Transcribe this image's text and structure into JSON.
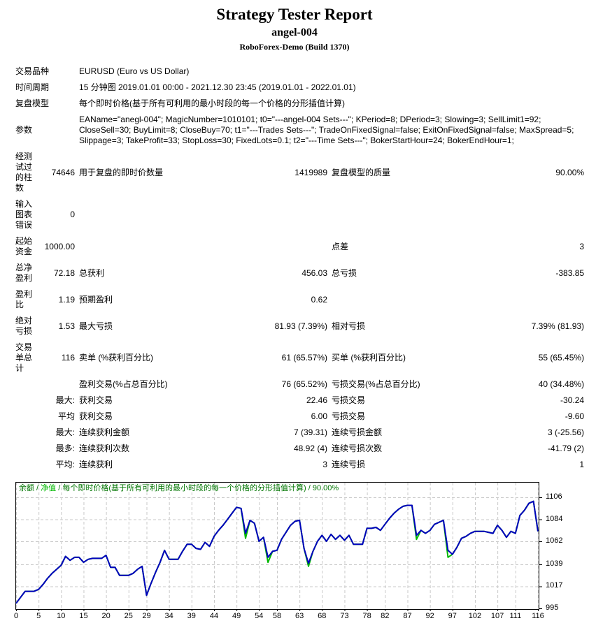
{
  "header": {
    "title": "Strategy Tester Report",
    "ea_name": "angel-004",
    "server": "RoboForex-Demo (Build 1370)"
  },
  "report": {
    "rows": [
      [
        {
          "t": "交易品种",
          "s": 2,
          "c": "h"
        },
        {
          "t": "EURUSD (Euro vs US Dollar)",
          "s": 4
        }
      ],
      [
        {
          "t": "时间周期",
          "s": 2,
          "c": "h"
        },
        {
          "t": "15 分钟图 2019.01.01 00:00 - 2021.12.30 23:45 (2019.01.01 - 2022.01.01)",
          "s": 4
        }
      ],
      [
        {
          "t": "复盘模型",
          "s": 2,
          "c": "h"
        },
        {
          "t": "每个即时价格(基于所有可利用的最小时段的每一个价格的分形插值计算)",
          "s": 4
        }
      ],
      [
        {
          "t": "参数",
          "s": 2,
          "c": "h"
        },
        {
          "t": "EAName=\"anegl-004\"; MagicNumber=1010101; t0=\"---angel-004 Sets---\"; KPeriod=8; DPeriod=3; Slowing=3; SellLimit1=92;\nCloseSell=30; BuyLimit=8; CloseBuy=70; t1=\"---Trades Sets---\"; TradeOnFixedSignal=false; ExitOnFixedSignal=false; MaxSpread=5;\nSlippage=3; TakeProfit=33; StopLoss=30; FixedLots=0.1; t2=\"---Time Sets---\"; BokerStartHour=24; BokerEndHour=1;",
          "s": 4
        }
      ],
      [
        {
          "t": "经测\n试过\n的柱\n数",
          "c": "h"
        },
        {
          "t": "74646",
          "c": "r"
        },
        {
          "t": "用于复盘的即时价数量"
        },
        {
          "t": "1419989",
          "c": "r"
        },
        {
          "t": "复盘模型的质量"
        },
        {
          "t": "90.00%",
          "c": "r"
        }
      ],
      [
        {
          "t": "输入\n图表\n错误",
          "c": "h"
        },
        {
          "t": "0",
          "c": "r"
        },
        {
          "t": ""
        },
        {
          "t": ""
        },
        {
          "t": ""
        },
        {
          "t": ""
        }
      ],
      [
        {
          "t": "起始\n资金",
          "c": "h"
        },
        {
          "t": "1000.00",
          "c": "r"
        },
        {
          "t": ""
        },
        {
          "t": ""
        },
        {
          "t": "点差"
        },
        {
          "t": "3",
          "c": "r"
        }
      ],
      [
        {
          "t": "总净\n盈利",
          "c": "h"
        },
        {
          "t": "72.18",
          "c": "r"
        },
        {
          "t": "总获利"
        },
        {
          "t": "456.03",
          "c": "r"
        },
        {
          "t": "总亏损"
        },
        {
          "t": "-383.85",
          "c": "r"
        }
      ],
      [
        {
          "t": "盈利\n比",
          "c": "h"
        },
        {
          "t": "1.19",
          "c": "r"
        },
        {
          "t": "预期盈利"
        },
        {
          "t": "0.62",
          "c": "r"
        },
        {
          "t": ""
        },
        {
          "t": ""
        }
      ],
      [
        {
          "t": "绝对\n亏损",
          "c": "h"
        },
        {
          "t": "1.53",
          "c": "r"
        },
        {
          "t": "最大亏损"
        },
        {
          "t": "81.93 (7.39%)",
          "c": "r"
        },
        {
          "t": "相对亏损"
        },
        {
          "t": "7.39% (81.93)",
          "c": "r"
        }
      ],
      [
        {
          "t": "交易\n单总\n计",
          "c": "h"
        },
        {
          "t": "116",
          "c": "r"
        },
        {
          "t": "卖单 (%获利百分比)"
        },
        {
          "t": "61 (65.57%)",
          "c": "r"
        },
        {
          "t": "买单 (%获利百分比)"
        },
        {
          "t": "55 (65.45%)",
          "c": "r"
        }
      ],
      [
        {
          "t": "",
          "c": "h"
        },
        {
          "t": "",
          "c": "r"
        },
        {
          "t": "盈利交易(%占总百分比)"
        },
        {
          "t": "76 (65.52%)",
          "c": "r"
        },
        {
          "t": "亏损交易(%占总百分比)"
        },
        {
          "t": "40 (34.48%)",
          "c": "r"
        }
      ],
      [
        {
          "t": "",
          "c": "h"
        },
        {
          "t": "最大:",
          "c": "r"
        },
        {
          "t": "获利交易"
        },
        {
          "t": "22.46",
          "c": "r"
        },
        {
          "t": "亏损交易"
        },
        {
          "t": "-30.24",
          "c": "r"
        }
      ],
      [
        {
          "t": "",
          "c": "h"
        },
        {
          "t": "平均",
          "c": "r"
        },
        {
          "t": "获利交易"
        },
        {
          "t": "6.00",
          "c": "r"
        },
        {
          "t": "亏损交易"
        },
        {
          "t": "-9.60",
          "c": "r"
        }
      ],
      [
        {
          "t": "",
          "c": "h"
        },
        {
          "t": "最大:",
          "c": "r"
        },
        {
          "t": "连续获利金额"
        },
        {
          "t": "7 (39.31)",
          "c": "r"
        },
        {
          "t": "连续亏损金额"
        },
        {
          "t": "3 (-25.56)",
          "c": "r"
        }
      ],
      [
        {
          "t": "",
          "c": "h"
        },
        {
          "t": "最多:",
          "c": "r"
        },
        {
          "t": "连续获利次数"
        },
        {
          "t": "48.92 (4)",
          "c": "r"
        },
        {
          "t": "连续亏损次数"
        },
        {
          "t": "-41.79 (2)",
          "c": "r"
        }
      ],
      [
        {
          "t": "",
          "c": "h"
        },
        {
          "t": "平均:",
          "c": "r"
        },
        {
          "t": "连续获利"
        },
        {
          "t": "3",
          "c": "r"
        },
        {
          "t": "连续亏损"
        },
        {
          "t": "1",
          "c": "r"
        }
      ]
    ]
  },
  "chart_data": {
    "type": "line",
    "legend": {
      "balance_label": "余额",
      "separator": " / ",
      "equity_label": "净值",
      "model_label": "每个即时价格(基于所有可利用的最小时段的每一个价格的分形插值计算)",
      "quality": "90.00%"
    },
    "xlabel": "",
    "ylabel": "",
    "x_ticks": [
      0,
      5,
      10,
      15,
      20,
      25,
      29,
      34,
      39,
      44,
      49,
      54,
      58,
      63,
      68,
      73,
      78,
      82,
      87,
      92,
      97,
      102,
      107,
      111,
      116
    ],
    "y_ticks": [
      1106,
      1084,
      1062,
      1039,
      1017,
      995
    ],
    "x_range": [
      0,
      116
    ],
    "grid": "dashed",
    "legend_position": "top-left",
    "y_axis_side": "right",
    "series": [
      {
        "name": "余额",
        "color": "#0000BE",
        "values": [
          1000,
          1006,
          1012,
          1012,
          1012,
          1014,
          1019,
          1025,
          1030,
          1034,
          1038,
          1047,
          1043,
          1046,
          1046,
          1041,
          1044,
          1045,
          1045,
          1045,
          1048,
          1036,
          1036,
          1028,
          1028,
          1028,
          1030,
          1034,
          1037,
          1008,
          1020,
          1031,
          1041,
          1053,
          1044,
          1044,
          1044,
          1052,
          1059,
          1059,
          1055,
          1054,
          1061,
          1057,
          1067,
          1073,
          1078,
          1084,
          1090,
          1096,
          1095,
          1070,
          1083,
          1080,
          1062,
          1066,
          1046,
          1052,
          1053,
          1064,
          1071,
          1078,
          1082,
          1083,
          1055,
          1040,
          1052,
          1062,
          1068,
          1062,
          1069,
          1064,
          1068,
          1063,
          1068,
          1059,
          1059,
          1059,
          1075,
          1075,
          1076,
          1073,
          1079,
          1085,
          1090,
          1094,
          1097,
          1098,
          1098,
          1068,
          1073,
          1070,
          1073,
          1079,
          1081,
          1083,
          1053,
          1049,
          1056,
          1065,
          1067,
          1070,
          1072,
          1072,
          1072,
          1071,
          1070,
          1078,
          1073,
          1066,
          1072,
          1070,
          1088,
          1093,
          1100,
          1102,
          1072
        ]
      },
      {
        "name": "净值",
        "color": "#00B800",
        "same_as_balance_except": {
          "51": 1065,
          "56": 1041,
          "65": 1037,
          "89": 1064,
          "96": 1046
        }
      }
    ],
    "colors": {
      "grid": "#C9C9C9",
      "border": "#000000",
      "legend_text": "#007500",
      "legend_equity": "#00B800",
      "axis_text": "#000000"
    }
  }
}
